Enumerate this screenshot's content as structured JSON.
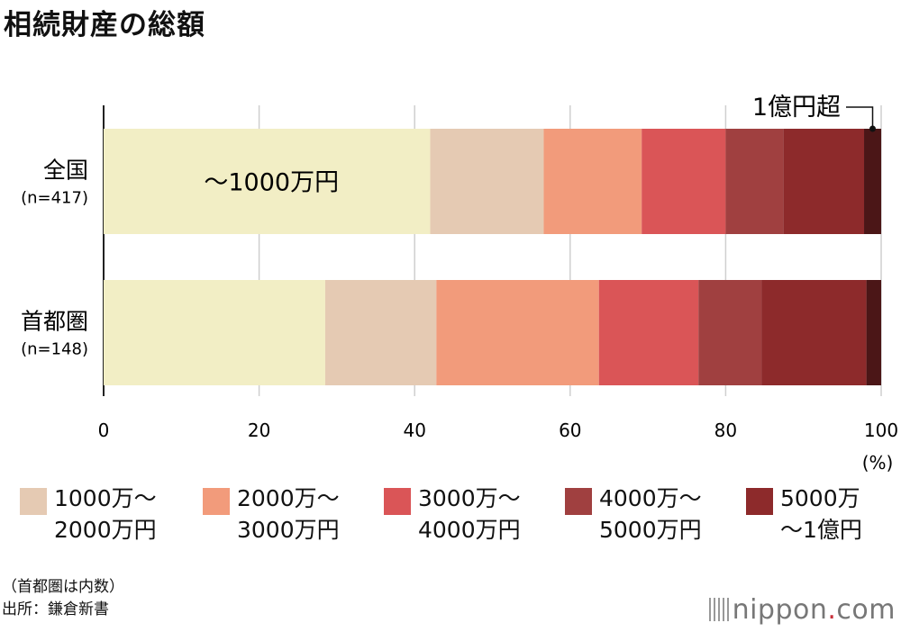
{
  "title": "相続財産の総額",
  "colors": {
    "bracket_0": "#f2eec5",
    "bracket_1": "#e5cab3",
    "bracket_2": "#f29b7b",
    "bracket_3": "#da5557",
    "bracket_4": "#a04040",
    "bracket_5": "#8d2a2b",
    "bracket_6": "#4b1617"
  },
  "chart_data": {
    "type": "bar",
    "orientation": "horizontal",
    "stacked": true,
    "unit": "(%)",
    "xlim": [
      0,
      100
    ],
    "x_ticks": [
      "0",
      "20",
      "40",
      "60",
      "80",
      "100"
    ],
    "categories": [
      {
        "name": "全国",
        "n": "(n=417)"
      },
      {
        "name": "首都圏",
        "n": "(n=148)"
      }
    ],
    "series": [
      {
        "name": "～1000万円",
        "values": [
          42,
          28.5
        ]
      },
      {
        "name": "1000万～\n2000万円",
        "values": [
          14.6,
          14.3
        ]
      },
      {
        "name": "2000万～\n3000万円",
        "values": [
          12.6,
          20.9
        ]
      },
      {
        "name": "3000万～\n4000万円",
        "values": [
          10.8,
          12.8
        ]
      },
      {
        "name": "4000万～\n5000万円",
        "values": [
          7.4,
          8.1
        ]
      },
      {
        "name": "5000万\n～1億円",
        "values": [
          10.4,
          13.5
        ]
      },
      {
        "name": "1億円超",
        "values": [
          2.2,
          1.9
        ]
      }
    ]
  },
  "footnote": [
    "（首都圏は内数）",
    "出所：鎌倉新書"
  ],
  "brand": {
    "name": "nippon",
    "dot": ".",
    "suffix": "com"
  }
}
